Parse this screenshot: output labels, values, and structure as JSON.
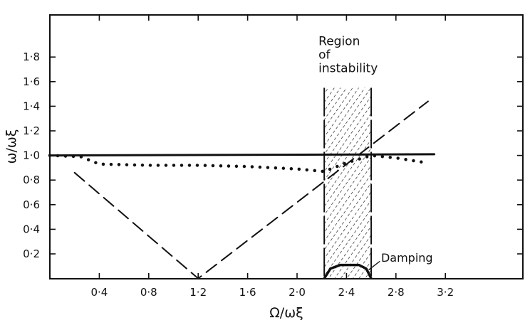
{
  "chart_data": {
    "type": "line",
    "title": "",
    "xlabel": "Ω/ωξ",
    "ylabel": "ω/ωξ",
    "xlim": [
      0,
      3.83
    ],
    "ylim": [
      0,
      2.14
    ],
    "grid": false,
    "x_ticks": [
      0.4,
      0.8,
      1.2,
      1.6,
      2.0,
      2.4,
      2.8,
      3.2
    ],
    "x_tick_labels": [
      "0·4",
      "0·8",
      "1·2",
      "1·6",
      "2·0",
      "2·4",
      "2·8",
      "3·2"
    ],
    "y_ticks": [
      0.2,
      0.4,
      0.6,
      0.8,
      1.0,
      1.2,
      1.4,
      1.6,
      1.8
    ],
    "y_tick_labels": [
      "0·2",
      "0·4",
      "0·6",
      "0·8",
      "1·0",
      "1·2",
      "1·4",
      "1·6",
      "1·8"
    ],
    "series": [
      {
        "style": "solid",
        "x": [
          0,
          3.11
        ],
        "y": [
          1.0,
          1.01
        ]
      },
      {
        "style": "dashed",
        "x": [
          0.2,
          1.2,
          3.06
        ],
        "y": [
          0.86,
          0.0,
          1.44
        ]
      },
      {
        "style": "dotted",
        "x": [
          0,
          0.25,
          0.4,
          0.8,
          1.2,
          1.6,
          2.0,
          2.22,
          2.4,
          2.6,
          2.8,
          3.05
        ],
        "y": [
          1.0,
          0.99,
          0.93,
          0.92,
          0.92,
          0.91,
          0.89,
          0.87,
          0.94,
          1.0,
          0.98,
          0.94
        ]
      }
    ],
    "regions": [
      {
        "label": "Region of instability",
        "label_lines": [
          "Region",
          "of",
          "instability"
        ],
        "x": [
          2.22,
          2.6
        ],
        "y": [
          0,
          1.55
        ],
        "fill": "hatched"
      }
    ],
    "annotations": [
      {
        "label": "Damping",
        "curve_x": [
          2.22,
          2.27,
          2.35,
          2.5,
          2.56,
          2.6
        ],
        "curve_y": [
          0,
          0.08,
          0.11,
          0.11,
          0.08,
          0
        ]
      }
    ],
    "colors": {
      "ink": "#111111",
      "background": "#ffffff"
    }
  }
}
